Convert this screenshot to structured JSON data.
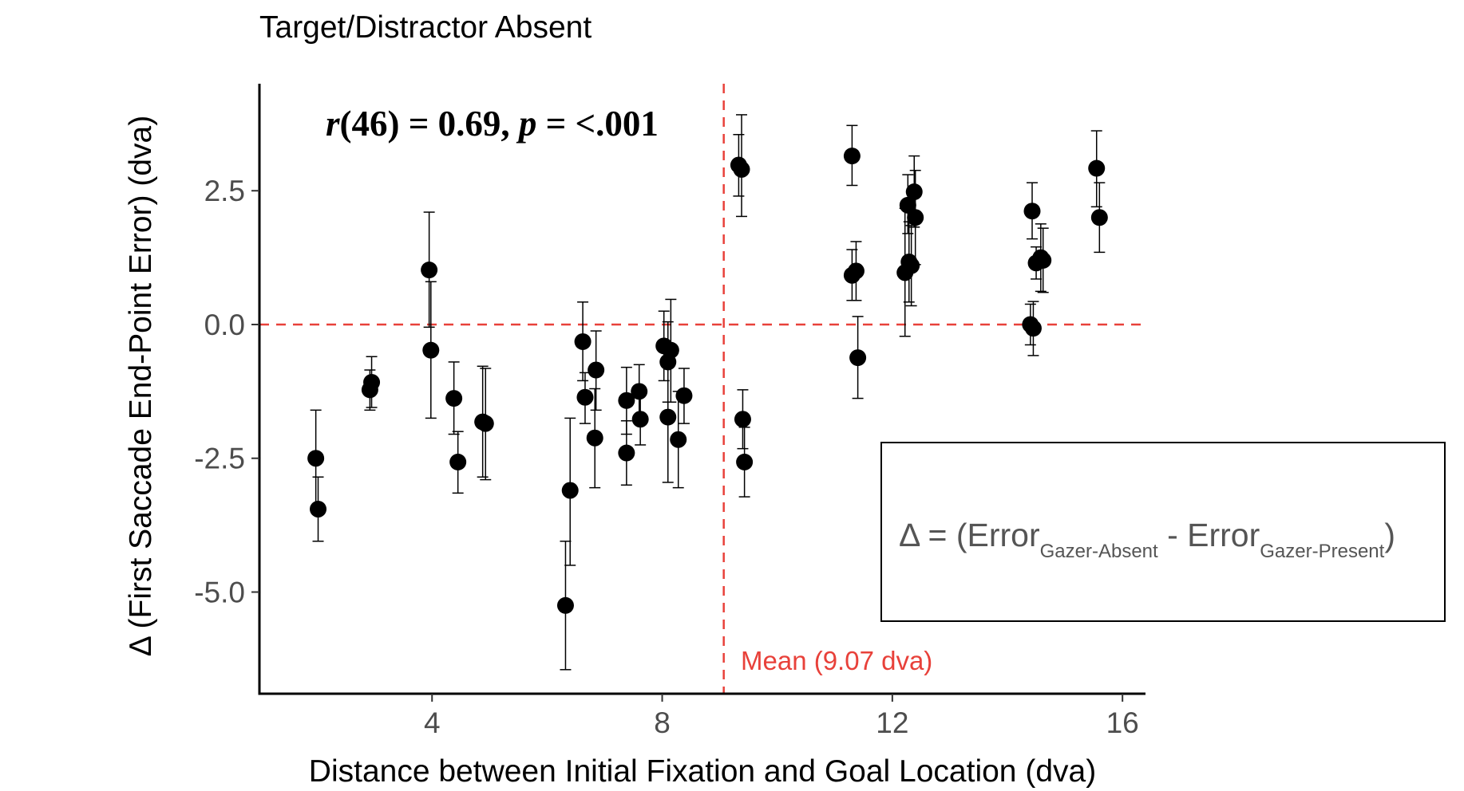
{
  "chart_data": {
    "type": "scatter",
    "title": "Target/Distractor Absent",
    "xlabel": "Distance between Initial Fixation and Goal Location (dva)",
    "ylabel": "Δ (First Saccade End-Point Error) (dva)",
    "xlim": [
      1,
      16.4
    ],
    "ylim": [
      -6.9,
      4.5
    ],
    "x_ticks": [
      4,
      8,
      12,
      16
    ],
    "x_tick_labels": [
      "4",
      "8",
      "12",
      "16"
    ],
    "y_ticks": [
      2.5,
      0,
      -2.5,
      -5
    ],
    "y_tick_labels": [
      "2.5",
      "0.0",
      "-2.5",
      "-5.0"
    ],
    "grid": false,
    "annotation": {
      "r_symbol": "r",
      "r_rest": "(46) = 0.69, ",
      "p_symbol": "p",
      "p_rest": " = <.001"
    },
    "mean_line": {
      "x": 9.07,
      "label": "Mean (9.07 dva)",
      "color": "#e8413a"
    },
    "reference_line": {
      "y": 0,
      "color": "#e8413a"
    },
    "formula_box": {
      "delta": "Δ",
      "eq": " = (Error",
      "sub1": "Gazer-Absent",
      "mid": " - Error",
      "sub2": "Gazer-Present",
      "close": ")"
    },
    "points": [
      {
        "x": 1.98,
        "y": -2.5,
        "lo": -3.4,
        "hi": -1.6
      },
      {
        "x": 2.02,
        "y": -3.45,
        "lo": -4.05,
        "hi": -2.85
      },
      {
        "x": 2.95,
        "y": -1.08,
        "lo": -1.55,
        "hi": -0.6
      },
      {
        "x": 2.92,
        "y": -1.22,
        "lo": -1.6,
        "hi": -0.85
      },
      {
        "x": 3.95,
        "y": 1.02,
        "lo": -0.05,
        "hi": 2.1
      },
      {
        "x": 3.98,
        "y": -0.48,
        "lo": -1.75,
        "hi": 0.8
      },
      {
        "x": 4.38,
        "y": -1.38,
        "lo": -2.05,
        "hi": -0.7
      },
      {
        "x": 4.45,
        "y": -2.57,
        "lo": -3.15,
        "hi": -2.0
      },
      {
        "x": 4.88,
        "y": -1.82,
        "lo": -2.85,
        "hi": -0.78
      },
      {
        "x": 4.93,
        "y": -1.85,
        "lo": -2.9,
        "hi": -0.82
      },
      {
        "x": 6.32,
        "y": -5.25,
        "lo": -6.45,
        "hi": -4.05
      },
      {
        "x": 6.4,
        "y": -3.1,
        "lo": -4.5,
        "hi": -1.75
      },
      {
        "x": 6.62,
        "y": -0.32,
        "lo": -1.05,
        "hi": 0.42
      },
      {
        "x": 6.66,
        "y": -1.36,
        "lo": -1.85,
        "hi": -0.9
      },
      {
        "x": 6.85,
        "y": -0.85,
        "lo": -1.6,
        "hi": -0.12
      },
      {
        "x": 6.83,
        "y": -2.12,
        "lo": -3.05,
        "hi": -1.2
      },
      {
        "x": 7.38,
        "y": -1.42,
        "lo": -2.05,
        "hi": -0.8
      },
      {
        "x": 7.38,
        "y": -2.4,
        "lo": -3.0,
        "hi": -1.8
      },
      {
        "x": 7.6,
        "y": -1.25,
        "lo": -1.75,
        "hi": -0.75
      },
      {
        "x": 7.62,
        "y": -1.77,
        "lo": -2.25,
        "hi": -1.3
      },
      {
        "x": 8.03,
        "y": -0.4,
        "lo": -1.05,
        "hi": 0.25
      },
      {
        "x": 8.1,
        "y": -0.7,
        "lo": -1.45,
        "hi": 0.05
      },
      {
        "x": 8.15,
        "y": -0.48,
        "lo": -1.45,
        "hi": 0.47
      },
      {
        "x": 8.1,
        "y": -1.73,
        "lo": -2.95,
        "hi": -0.5
      },
      {
        "x": 8.28,
        "y": -2.15,
        "lo": -3.05,
        "hi": -1.25
      },
      {
        "x": 8.38,
        "y": -1.33,
        "lo": -1.85,
        "hi": -0.82
      },
      {
        "x": 9.33,
        "y": 2.98,
        "lo": 2.4,
        "hi": 3.55
      },
      {
        "x": 9.38,
        "y": 2.9,
        "lo": 2.02,
        "hi": 3.92
      },
      {
        "x": 9.4,
        "y": -1.77,
        "lo": -2.32,
        "hi": -1.22
      },
      {
        "x": 9.43,
        "y": -2.57,
        "lo": -3.22,
        "hi": -1.92
      },
      {
        "x": 11.3,
        "y": 3.15,
        "lo": 2.6,
        "hi": 3.72
      },
      {
        "x": 11.3,
        "y": 0.92,
        "lo": 0.45,
        "hi": 1.4
      },
      {
        "x": 11.37,
        "y": 1.0,
        "lo": 0.45,
        "hi": 1.55
      },
      {
        "x": 11.4,
        "y": -0.62,
        "lo": -1.38,
        "hi": 0.15
      },
      {
        "x": 12.22,
        "y": 0.97,
        "lo": -0.22,
        "hi": 2.17
      },
      {
        "x": 12.27,
        "y": 2.23,
        "lo": 1.7,
        "hi": 2.8
      },
      {
        "x": 12.29,
        "y": 1.17,
        "lo": 0.42,
        "hi": 1.92
      },
      {
        "x": 12.33,
        "y": 1.1,
        "lo": 0.35,
        "hi": 1.85
      },
      {
        "x": 12.38,
        "y": 2.48,
        "lo": 1.82,
        "hi": 3.15
      },
      {
        "x": 12.4,
        "y": 2.0,
        "lo": 1.12,
        "hi": 2.88
      },
      {
        "x": 14.4,
        "y": 0.0,
        "lo": -0.38,
        "hi": 0.38
      },
      {
        "x": 14.45,
        "y": -0.07,
        "lo": -0.58,
        "hi": 0.43
      },
      {
        "x": 14.43,
        "y": 2.12,
        "lo": 1.6,
        "hi": 2.65
      },
      {
        "x": 14.5,
        "y": 1.15,
        "lo": 0.85,
        "hi": 1.45
      },
      {
        "x": 14.58,
        "y": 1.25,
        "lo": 0.62,
        "hi": 1.88
      },
      {
        "x": 14.62,
        "y": 1.2,
        "lo": 0.6,
        "hi": 1.8
      },
      {
        "x": 15.55,
        "y": 2.92,
        "lo": 2.2,
        "hi": 3.62
      },
      {
        "x": 15.6,
        "y": 2.0,
        "lo": 1.35,
        "hi": 2.65
      }
    ]
  }
}
